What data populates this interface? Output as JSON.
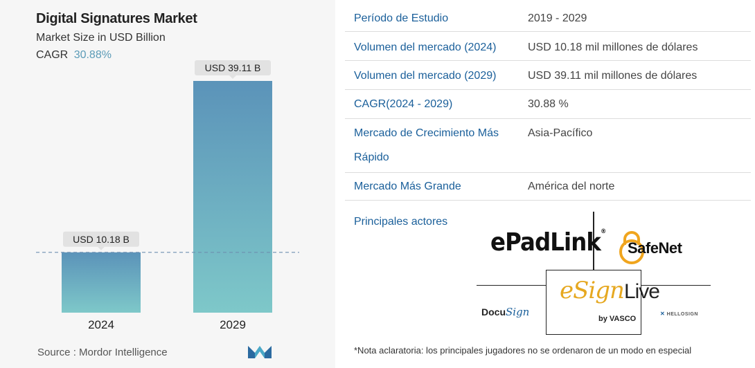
{
  "left": {
    "title": "Digital Signatures Market",
    "subtitle": "Market Size in USD Billion",
    "cagr_label": "CAGR",
    "cagr_value": "30.88%",
    "source": "Source :  Mordor Intelligence",
    "logo_icon": "mordor-logo-icon"
  },
  "chart_data": {
    "type": "bar",
    "categories": [
      "2024",
      "2029"
    ],
    "values": [
      10.18,
      39.11
    ],
    "data_labels": [
      "USD 10.18 B",
      "USD 39.11 B"
    ],
    "title": "Digital Signatures Market",
    "subtitle": "Market Size in USD Billion",
    "ylim": [
      0,
      39.11
    ],
    "reference_line_value": 10.18,
    "grid": false,
    "bar_gradient": [
      "#5b93b9",
      "#7ec8c9"
    ]
  },
  "table": {
    "rows": [
      {
        "label": "Período de Estudio",
        "value": "2019 - 2029"
      },
      {
        "label": "Volumen del mercado (2024)",
        "value": "USD 10.18 mil millones de dólares"
      },
      {
        "label": "Volumen del mercado (2029)",
        "value": "USD 39.11 mil millones de dólares"
      },
      {
        "label": "CAGR(2024 - 2029)",
        "value": "30.88 %"
      },
      {
        "label": "Mercado de Crecimiento Más Rápido",
        "value": "Asia-Pacífico"
      },
      {
        "label": "Mercado Más Grande",
        "value": "América del norte"
      }
    ],
    "actors_title": "Principales actores",
    "footnote": "*Nota aclaratoria: los principales jugadores no se ordenaron de un modo en especial"
  },
  "actors": {
    "epadlink": "ePadLink",
    "epadlink_mark": "®",
    "safenet": "SafeNet",
    "docusign_a": "Docu",
    "docusign_b": "Sign",
    "esign_a": "eSign",
    "esign_b": "Live",
    "esign_sub": "by VASCO",
    "hellosign": "HELLOSIGN"
  },
  "colors": {
    "accent": "#1a5f9a",
    "cagr": "#5b9bb7",
    "esign_gold": "#e6a820"
  }
}
